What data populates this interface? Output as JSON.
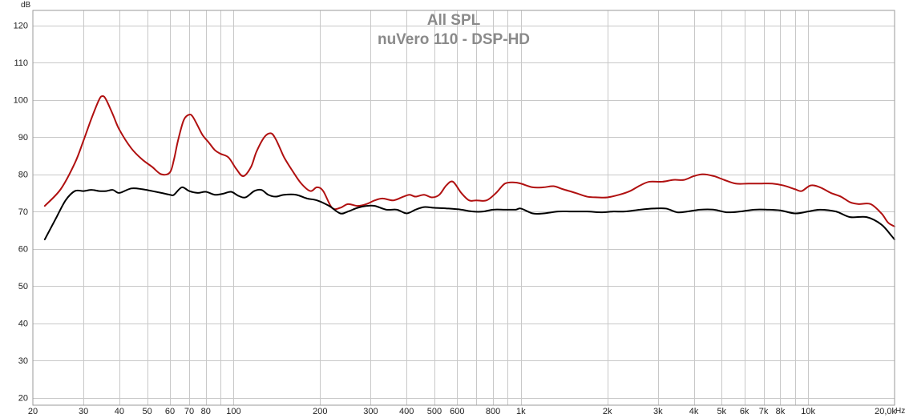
{
  "chart_data": {
    "type": "line",
    "title": "All SPL",
    "subtitle": "nuVero 110 - DSP-HD",
    "ylabel": "dB",
    "xlabel": "Hz",
    "x_scale": "log",
    "xlim": [
      20,
      20000
    ],
    "ylim": [
      18,
      124
    ],
    "grid": true,
    "y_ticks": [
      20,
      30,
      40,
      50,
      60,
      70,
      80,
      90,
      100,
      110,
      120
    ],
    "x_ticks": [
      {
        "value": 20,
        "label": "20"
      },
      {
        "value": 30,
        "label": "30"
      },
      {
        "value": 40,
        "label": "40"
      },
      {
        "value": 50,
        "label": "50"
      },
      {
        "value": 60,
        "label": "60"
      },
      {
        "value": 70,
        "label": "70"
      },
      {
        "value": 80,
        "label": "80"
      },
      {
        "value": 100,
        "label": "100"
      },
      {
        "value": 200,
        "label": "200"
      },
      {
        "value": 300,
        "label": "300"
      },
      {
        "value": 400,
        "label": "400"
      },
      {
        "value": 500,
        "label": "500"
      },
      {
        "value": 600,
        "label": "600"
      },
      {
        "value": 800,
        "label": "800"
      },
      {
        "value": 1000,
        "label": "1k"
      },
      {
        "value": 2000,
        "label": "2k"
      },
      {
        "value": 3000,
        "label": "3k"
      },
      {
        "value": 4000,
        "label": "4k"
      },
      {
        "value": 5000,
        "label": "5k"
      },
      {
        "value": 6000,
        "label": "6k"
      },
      {
        "value": 7000,
        "label": "7k"
      },
      {
        "value": 8000,
        "label": "8k"
      },
      {
        "value": 10000,
        "label": "10k"
      },
      {
        "value": 20000,
        "label": "20,0k"
      }
    ],
    "series": [
      {
        "color": "#b01010",
        "x": [
          22,
          25,
          28,
          30,
          32,
          34,
          35,
          36,
          38,
          40,
          44,
          48,
          52,
          56,
          60,
          62,
          64,
          67,
          70,
          72,
          75,
          78,
          82,
          86,
          90,
          96,
          102,
          108,
          115,
          120,
          128,
          135,
          140,
          145,
          150,
          160,
          172,
          185,
          195,
          205,
          220,
          235,
          250,
          270,
          290,
          310,
          330,
          360,
          390,
          410,
          430,
          460,
          490,
          520,
          550,
          580,
          620,
          660,
          700,
          760,
          820,
          880,
          950,
          1000,
          1100,
          1200,
          1300,
          1400,
          1550,
          1700,
          1850,
          2000,
          2200,
          2400,
          2600,
          2800,
          3100,
          3400,
          3700,
          4000,
          4300,
          4700,
          5100,
          5600,
          6200,
          6800,
          7500,
          8200,
          9000,
          9500,
          10200,
          11000,
          12000,
          13000,
          14000,
          15000,
          16500,
          18000,
          19000,
          20000
        ],
        "y": [
          71.5,
          76,
          83,
          89,
          95,
          100,
          101,
          100,
          96,
          92,
          87,
          84,
          82,
          80,
          80.5,
          84,
          89,
          94.5,
          96,
          95.5,
          93,
          90.5,
          88.5,
          86.5,
          85.5,
          84.5,
          81.5,
          79.5,
          82,
          86,
          90,
          91,
          89.5,
          87,
          84.5,
          81,
          77.5,
          75.5,
          76.5,
          75.5,
          71,
          71,
          72,
          71.5,
          72,
          73,
          73.5,
          73,
          74,
          74.5,
          74,
          74.5,
          73.8,
          74.5,
          77,
          78,
          75,
          73,
          73,
          73,
          75,
          77.5,
          77.8,
          77.5,
          76.5,
          76.5,
          76.8,
          76,
          75,
          74,
          73.8,
          73.8,
          74.5,
          75.5,
          77,
          78,
          78,
          78.5,
          78.5,
          79.5,
          80,
          79.5,
          78.5,
          77.5,
          77.5,
          77.5,
          77.5,
          77,
          76,
          75.5,
          77,
          76.5,
          75,
          74,
          72.5,
          72,
          72,
          69.5,
          67,
          66
        ]
      },
      {
        "color": "#000000",
        "x": [
          22,
          24,
          26,
          28,
          30,
          32,
          34,
          36,
          38,
          40,
          44,
          48,
          52,
          56,
          60,
          62,
          66,
          70,
          75,
          80,
          86,
          92,
          98,
          104,
          110,
          118,
          125,
          132,
          140,
          150,
          165,
          180,
          195,
          215,
          235,
          250,
          270,
          290,
          310,
          340,
          370,
          400,
          430,
          460,
          500,
          560,
          620,
          680,
          740,
          800,
          880,
          960,
          1000,
          1100,
          1200,
          1350,
          1500,
          1700,
          1900,
          2100,
          2300,
          2600,
          2900,
          3200,
          3500,
          3800,
          4200,
          4700,
          5200,
          5800,
          6500,
          7200,
          8000,
          9000,
          10000,
          11000,
          12500,
          14000,
          16000,
          18000,
          19500,
          20000
        ],
        "y": [
          62.5,
          68,
          73,
          75.5,
          75.5,
          75.8,
          75.5,
          75.5,
          75.8,
          75,
          76.2,
          76,
          75.5,
          75,
          74.5,
          74.5,
          76.5,
          75.5,
          75,
          75.3,
          74.5,
          74.8,
          75.3,
          74.2,
          73.8,
          75.5,
          75.8,
          74.5,
          74,
          74.5,
          74.5,
          73.5,
          73,
          71.5,
          69.5,
          70,
          71,
          71.5,
          71.5,
          70.5,
          70.5,
          69.5,
          70.5,
          71.2,
          71,
          70.8,
          70.5,
          70,
          70,
          70.5,
          70.5,
          70.5,
          70.8,
          69.5,
          69.5,
          70,
          70,
          70,
          69.8,
          70,
          70,
          70.5,
          70.8,
          70.8,
          69.8,
          70,
          70.5,
          70.5,
          69.8,
          70,
          70.5,
          70.5,
          70.3,
          69.5,
          70,
          70.5,
          70,
          68.5,
          68.5,
          66.5,
          63.5,
          62.5
        ]
      }
    ]
  }
}
